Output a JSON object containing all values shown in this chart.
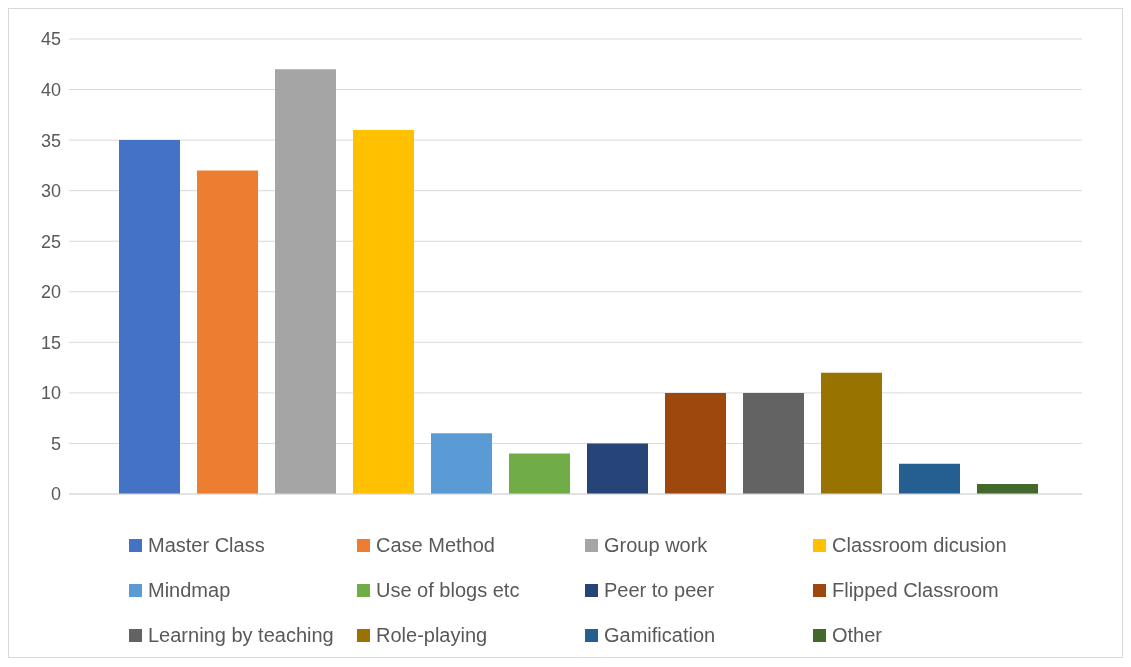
{
  "chart_data": {
    "type": "bar",
    "categories": [
      null
    ],
    "ylim": [
      0,
      45
    ],
    "yticks": [
      0,
      5,
      10,
      15,
      20,
      25,
      30,
      35,
      40,
      45
    ],
    "grid": "y",
    "legend": "bottom",
    "series": [
      {
        "name": "Master Class",
        "color": "#4472c4",
        "values": [
          35
        ]
      },
      {
        "name": "Case Method",
        "color": "#ed7d31",
        "values": [
          32
        ]
      },
      {
        "name": "Group work",
        "color": "#a5a5a5",
        "values": [
          42
        ]
      },
      {
        "name": "Classroom dicusion",
        "color": "#ffc000",
        "values": [
          36
        ]
      },
      {
        "name": "Mindmap",
        "color": "#5b9bd5",
        "values": [
          6
        ]
      },
      {
        "name": "Use of blogs etc",
        "color": "#70ad47",
        "values": [
          4
        ]
      },
      {
        "name": "Peer to peer",
        "color": "#264478",
        "values": [
          5
        ]
      },
      {
        "name": "Flipped Classroom",
        "color": "#9e480e",
        "values": [
          10
        ]
      },
      {
        "name": "Learning by teaching",
        "color": "#636363",
        "values": [
          10
        ]
      },
      {
        "name": "Role-playing",
        "color": "#997300",
        "values": [
          12
        ]
      },
      {
        "name": "Gamification",
        "color": "#255e91",
        "values": [
          3
        ]
      },
      {
        "name": "Other",
        "color": "#43682b",
        "values": [
          1
        ]
      }
    ]
  }
}
